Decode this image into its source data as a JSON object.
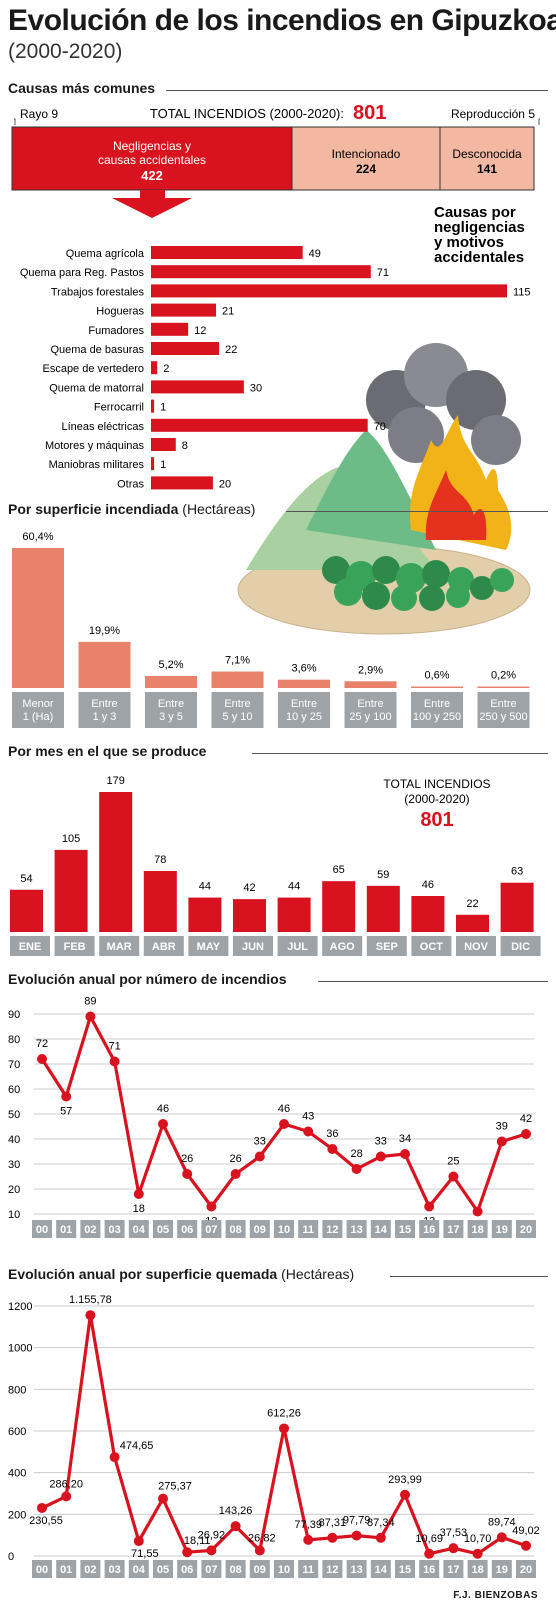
{
  "header": {
    "title": "Evolución de los incendios en Gipuzkoa",
    "subtitle": "(2000-2020)"
  },
  "causes_section": {
    "heading": "Causas más comunes",
    "total_label": "TOTAL INCENDIOS (2000-2020):",
    "total_value": "801",
    "rayo": "Rayo 9",
    "reproduccion": "Reproducción 5",
    "blocks": [
      {
        "label": "Negligencias y causas accidentales",
        "value": 422
      },
      {
        "label": "Intencionado",
        "value": 224
      },
      {
        "label": "Desconocida",
        "value": 141
      }
    ],
    "detail_title": "Causas por negligencias y motivos accidentales"
  },
  "surface_section": {
    "heading": "Por superficie incendiada",
    "heading_unit": "(Hectáreas)"
  },
  "month_section": {
    "heading": "Por mes en el que se produce",
    "total_label_1": "TOTAL INCENDIOS",
    "total_label_2": "(2000-2020)",
    "total_value": "801"
  },
  "annual_count_section": {
    "heading": "Evolución anual por número de incendios"
  },
  "annual_area_section": {
    "heading": "Evolución anual por superficie quemada",
    "heading_unit": "(Hectáreas)"
  },
  "credit": "F.J. BIENZOBAS",
  "colors": {
    "red": "#d8121e",
    "salmon": "#e8826a",
    "pink": "#f2b8a2",
    "gray_tab": "#9ea3a8"
  },
  "chart_data": [
    {
      "type": "bar",
      "orientation": "horizontal",
      "title": "Causas por negligencias y motivos accidentales",
      "categories": [
        "Quema agrícola",
        "Quema para Reg. Pastos",
        "Trabajos forestales",
        "Hogueras",
        "Fumadores",
        "Quema de basuras",
        "Escape de vertedero",
        "Quema de matorral",
        "Ferrocarril",
        "Líneas eléctricas",
        "Motores y máquinas",
        "Maniobras militares",
        "Otras"
      ],
      "values": [
        49,
        71,
        115,
        21,
        12,
        22,
        2,
        30,
        1,
        70,
        8,
        1,
        20
      ]
    },
    {
      "type": "bar",
      "title": "Por superficie incendiada",
      "categories": [
        [
          "Menor",
          "1 (Ha)"
        ],
        [
          "Entre",
          "1 y 3"
        ],
        [
          "Entre",
          "3 y 5"
        ],
        [
          "Entre",
          "5 y 10"
        ],
        [
          "Entre",
          "10 y 25"
        ],
        [
          "Entre",
          "25 y 100"
        ],
        [
          "Entre",
          "100 y 250"
        ],
        [
          "Entre",
          "250 y 500"
        ]
      ],
      "values": [
        60.4,
        19.9,
        5.2,
        7.1,
        3.6,
        2.9,
        0.6,
        0.2
      ],
      "labels": [
        "60,4%",
        "19,9%",
        "5,2%",
        "7,1%",
        "3,6%",
        "2,9%",
        "0,6%",
        "0,2%"
      ]
    },
    {
      "type": "bar",
      "title": "Por mes en el que se produce",
      "categories": [
        "ENE",
        "FEB",
        "MAR",
        "ABR",
        "MAY",
        "JUN",
        "JUL",
        "AGO",
        "SEP",
        "OCT",
        "NOV",
        "DIC"
      ],
      "values": [
        54,
        105,
        179,
        78,
        44,
        42,
        44,
        65,
        59,
        46,
        22,
        63
      ]
    },
    {
      "type": "line",
      "title": "Evolución anual por número de incendios",
      "x": [
        "00",
        "01",
        "02",
        "03",
        "04",
        "05",
        "06",
        "07",
        "08",
        "09",
        "10",
        "11",
        "12",
        "13",
        "14",
        "15",
        "16",
        "17",
        "18",
        "19",
        "20"
      ],
      "values": [
        72,
        57,
        89,
        71,
        18,
        46,
        26,
        13,
        26,
        33,
        46,
        43,
        36,
        28,
        33,
        34,
        13,
        25,
        11,
        39,
        42
      ],
      "ylim": [
        10,
        90
      ],
      "yticks": [
        10,
        20,
        30,
        40,
        50,
        60,
        70,
        80,
        90
      ],
      "grid": true
    },
    {
      "type": "line",
      "title": "Evolución anual por superficie quemada",
      "x": [
        "00",
        "01",
        "02",
        "03",
        "04",
        "05",
        "06",
        "07",
        "08",
        "09",
        "10",
        "11",
        "12",
        "13",
        "14",
        "15",
        "16",
        "17",
        "18",
        "19",
        "20"
      ],
      "values": [
        230.55,
        286.2,
        1155.78,
        474.65,
        71.55,
        275.37,
        18.11,
        26.92,
        143.26,
        26.82,
        612.26,
        77.39,
        87.31,
        97.79,
        87.34,
        293.99,
        10.69,
        37.53,
        10.7,
        89.74,
        49.02
      ],
      "labels": [
        "230,55",
        "286,20",
        "1.155,78",
        "474,65",
        "71,55",
        "275,37",
        "18,11",
        "26,92",
        "143,26",
        "26,82",
        "612,26",
        "77,39",
        "87,31",
        "97,79",
        "87,34",
        "293,99",
        "10,69",
        "37,53",
        "10,70",
        "89,74",
        "49,02"
      ],
      "ylim": [
        0,
        1200
      ],
      "yticks": [
        0,
        200,
        400,
        600,
        800,
        1000,
        1200
      ],
      "grid": true
    }
  ]
}
